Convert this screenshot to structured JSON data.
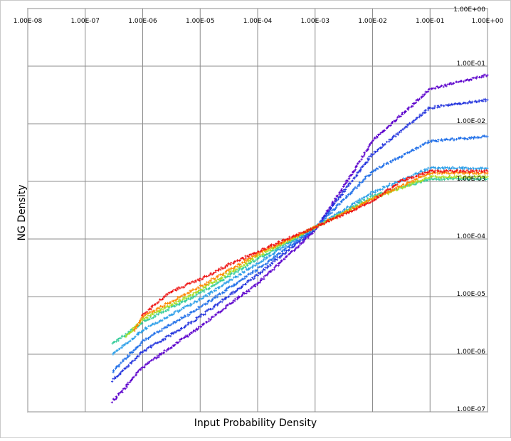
{
  "chart_data": {
    "type": "scatter",
    "title": "",
    "xlabel": "Input Probability Density",
    "ylabel": "NG Density",
    "x_scale": "log",
    "y_scale": "log",
    "xlim": [
      1e-08,
      1
    ],
    "ylim": [
      1e-07,
      1
    ],
    "grid": true,
    "legend": "none",
    "x_tick_labels": [
      "1.00E-08",
      "1.00E-07",
      "1.00E-06",
      "1.00E-05",
      "1.00E-04",
      "1.00E-03",
      "1.00E-02",
      "1.00E-01",
      "1.00E+00"
    ],
    "y_tick_labels": [
      "1.00E-07",
      "1.00E-06",
      "1.00E-05",
      "1.00E-04",
      "1.00E-03",
      "1.00E-02",
      "1.00E-01",
      "1.00E+00"
    ],
    "marker": "+",
    "series": [
      {
        "color": "#5b00cc",
        "points": [
          [
            3e-07,
            1.5e-07
          ],
          [
            1e-06,
            6e-07
          ],
          [
            1e-05,
            3e-06
          ],
          [
            0.0001,
            1.7e-05
          ],
          [
            0.001,
            0.00014
          ],
          [
            0.01,
            0.005
          ],
          [
            0.1,
            0.04
          ],
          [
            1,
            0.07
          ]
        ]
      },
      {
        "color": "#2233dd",
        "points": [
          [
            3e-07,
            3.5e-07
          ],
          [
            1e-06,
            1.1e-06
          ],
          [
            1e-05,
            4.5e-06
          ],
          [
            0.0001,
            2.4e-05
          ],
          [
            0.001,
            0.00015
          ],
          [
            0.01,
            0.003
          ],
          [
            0.1,
            0.019
          ],
          [
            1,
            0.026
          ]
        ]
      },
      {
        "color": "#1e6ee8",
        "points": [
          [
            3e-07,
            5e-07
          ],
          [
            1e-06,
            1.7e-06
          ],
          [
            1e-05,
            6.5e-06
          ],
          [
            0.0001,
            3e-05
          ],
          [
            0.001,
            0.000155
          ],
          [
            0.01,
            0.0015
          ],
          [
            0.1,
            0.005
          ],
          [
            1,
            0.006
          ]
        ]
      },
      {
        "color": "#2a9ee8",
        "points": [
          [
            3e-07,
            1e-06
          ],
          [
            1e-06,
            2.6e-06
          ],
          [
            1e-05,
            9e-06
          ],
          [
            0.0001,
            3.8e-05
          ],
          [
            0.001,
            0.00016
          ],
          [
            0.01,
            0.00065
          ],
          [
            0.1,
            0.0017
          ],
          [
            1,
            0.0017
          ]
        ]
      },
      {
        "color": "#33cc99",
        "points": [
          [
            3e-07,
            1.5e-06
          ],
          [
            1e-06,
            3.6e-06
          ],
          [
            1e-05,
            1.15e-05
          ],
          [
            0.0001,
            4.5e-05
          ],
          [
            0.001,
            0.00016
          ],
          [
            0.01,
            0.00055
          ],
          [
            0.1,
            0.0011
          ],
          [
            1,
            0.0011
          ]
        ]
      },
      {
        "color": "#aadd22",
        "points": [
          [
            5e-07,
            2e-06
          ],
          [
            1e-06,
            4e-06
          ],
          [
            1e-05,
            1.3e-05
          ],
          [
            0.0001,
            5e-05
          ],
          [
            0.001,
            0.00016
          ],
          [
            0.01,
            0.0005
          ],
          [
            0.1,
            0.0012
          ],
          [
            1,
            0.0012
          ]
        ]
      },
      {
        "color": "#ff8800",
        "points": [
          [
            7e-07,
            2.5e-06
          ],
          [
            1e-06,
            4.5e-06
          ],
          [
            1e-05,
            1.5e-05
          ],
          [
            0.0001,
            5.5e-05
          ],
          [
            0.001,
            0.00016
          ],
          [
            0.01,
            0.0005
          ],
          [
            0.1,
            0.0014
          ],
          [
            1,
            0.0014
          ]
        ]
      },
      {
        "color": "#ee1111",
        "points": [
          [
            1e-06,
            4.8e-06
          ],
          [
            3e-06,
            1.2e-05
          ],
          [
            1e-05,
            2e-05
          ],
          [
            3e-05,
            3.5e-05
          ],
          [
            0.0001,
            6e-05
          ],
          [
            0.001,
            0.00016
          ],
          [
            0.01,
            0.00045
          ],
          [
            0.03,
            0.001
          ],
          [
            0.1,
            0.0015
          ],
          [
            1,
            0.0015
          ]
        ]
      }
    ]
  }
}
